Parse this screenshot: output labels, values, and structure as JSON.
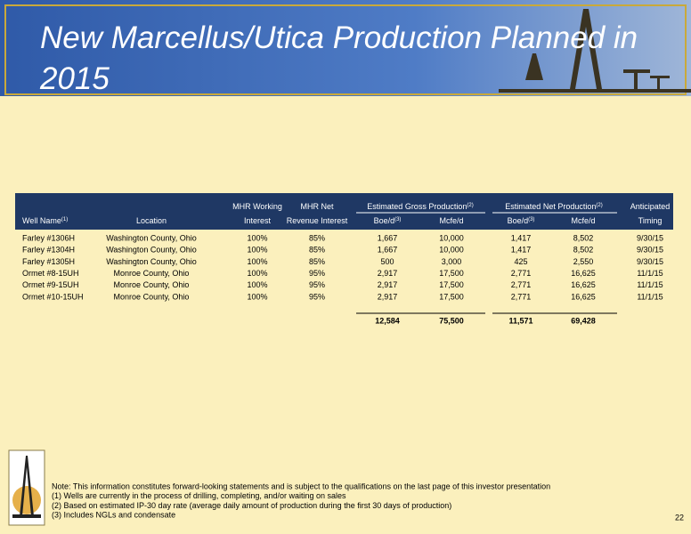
{
  "header": {
    "title": "New Marcellus/Utica Production Planned in 2015"
  },
  "table": {
    "header_top": [
      null,
      null,
      "MHR Working",
      "MHR Net",
      "Estimated Gross Production",
      "Estimated Net Production",
      "Anticipated"
    ],
    "header_top_notes": {
      "gross": "(2)",
      "net": "(2)"
    },
    "header_bottom": [
      {
        "text": "Well Name",
        "note": "(1)"
      },
      {
        "text": "Location"
      },
      {
        "text": "Interest"
      },
      {
        "text": "Revenue Interest"
      },
      {
        "text": "Boe/d",
        "note": "(3)"
      },
      {
        "text": "Mcfe/d"
      },
      {
        "text": "Boe/d",
        "note": "(3)"
      },
      {
        "text": "Mcfe/d"
      },
      {
        "text": "Timing"
      }
    ],
    "rows": [
      [
        "Farley #1306H",
        "Washington County, Ohio",
        "100%",
        "85%",
        "1,667",
        "10,000",
        "1,417",
        "8,502",
        "9/30/15"
      ],
      [
        "Farley #1304H",
        "Washington County, Ohio",
        "100%",
        "85%",
        "1,667",
        "10,000",
        "1,417",
        "8,502",
        "9/30/15"
      ],
      [
        "Farley #1305H",
        "Washington County, Ohio",
        "100%",
        "85%",
        "500",
        "3,000",
        "425",
        "2,550",
        "9/30/15"
      ],
      [
        "Ormet #8-15UH",
        "Monroe County, Ohio",
        "100%",
        "95%",
        "2,917",
        "17,500",
        "2,771",
        "16,625",
        "11/1/15"
      ],
      [
        "Ormet #9-15UH",
        "Monroe County, Ohio",
        "100%",
        "95%",
        "2,917",
        "17,500",
        "2,771",
        "16,625",
        "11/1/15"
      ],
      [
        "Ormet #10-15UH",
        "Monroe County, Ohio",
        "100%",
        "95%",
        "2,917",
        "17,500",
        "2,771",
        "16,625",
        "11/1/15"
      ]
    ],
    "totals": [
      "12,584",
      "75,500",
      "11,571",
      "69,428"
    ]
  },
  "footnotes": [
    "Note:  This information constitutes forward-looking statements and is subject to the qualifications on the last page of this investor presentation",
    "(1)  Wells are currently in the process of drilling, completing, and/or waiting on sales",
    "(2)  Based on estimated IP-30 day rate (average daily amount of production during the first 30 days of production)",
    "(3)  Includes NGLs and condensate"
  ],
  "page_number": "22"
}
